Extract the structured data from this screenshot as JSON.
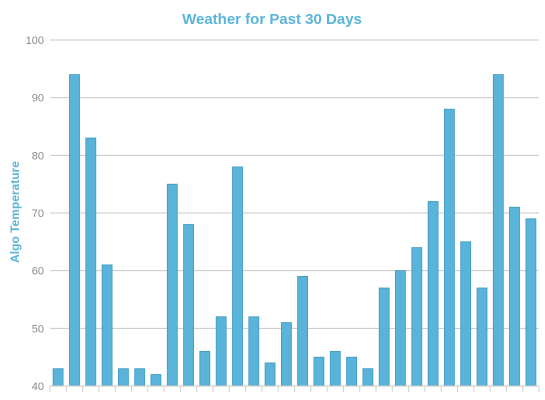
{
  "chart_data": {
    "type": "bar",
    "title": "Weather for Past 30 Days",
    "xlabel": "",
    "ylabel": "Algo Temperature",
    "ylim": [
      40,
      100
    ],
    "yticks": [
      40,
      50,
      60,
      70,
      80,
      90,
      100
    ],
    "grid": true,
    "legend": "none",
    "values": [
      43,
      94,
      83,
      61,
      43,
      43,
      42,
      75,
      68,
      46,
      52,
      78,
      52,
      44,
      51,
      59,
      45,
      46,
      45,
      43,
      57,
      60,
      64,
      72,
      88,
      65,
      57,
      94,
      71,
      69
    ]
  },
  "colors": {
    "bar": "#5ab4d9",
    "bar_edge": "#3f98c0",
    "title": "#5ab4d9",
    "ylabel": "#5ab4d9",
    "grid": "#c8c8c8"
  }
}
